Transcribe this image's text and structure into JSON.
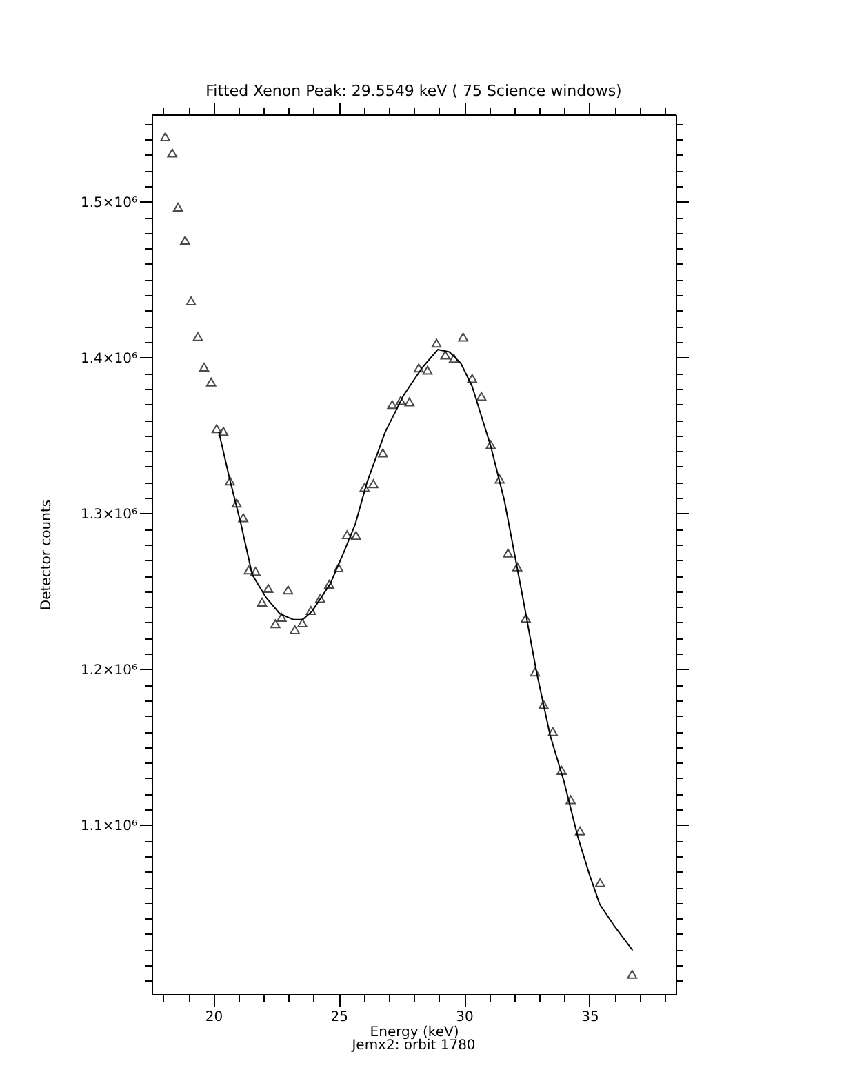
{
  "chart_data": {
    "type": "scatter",
    "title": "Fitted Xenon Peak:       29.5549 keV (      75 Science windows)",
    "xlabel": "Energy (keV)",
    "ylabel": "Detector counts",
    "annotations": [
      "Jemx2: orbit 1780"
    ],
    "xlim": [
      17.54,
      38.44
    ],
    "ylim": [
      991500,
      1556000
    ],
    "xticks": [
      {
        "value": 18,
        "label": null
      },
      {
        "value": 19,
        "label": null
      },
      20,
      {
        "value": 21,
        "label": null
      },
      {
        "value": 22,
        "label": null
      },
      {
        "value": 23,
        "label": null
      },
      {
        "value": 24,
        "label": null
      },
      25,
      {
        "value": 26,
        "label": null
      },
      {
        "value": 27,
        "label": null
      },
      {
        "value": 28,
        "label": null
      },
      {
        "value": 29,
        "label": null
      },
      30,
      {
        "value": 31,
        "label": null
      },
      {
        "value": 32,
        "label": null
      },
      {
        "value": 33,
        "label": null
      },
      {
        "value": 34,
        "label": null
      },
      35,
      {
        "value": 36,
        "label": null
      },
      {
        "value": 37,
        "label": null
      },
      {
        "value": 38,
        "label": null
      }
    ],
    "yticks": [
      {
        "value": 1000000,
        "label": null
      },
      {
        "value": 1010000,
        "label": null
      },
      {
        "value": 1020000,
        "label": null
      },
      {
        "value": 1030000,
        "label": null
      },
      {
        "value": 1040000,
        "label": null
      },
      {
        "value": 1050000,
        "label": null
      },
      {
        "value": 1060000,
        "label": null
      },
      {
        "value": 1070000,
        "label": null
      },
      {
        "value": 1080000,
        "label": null
      },
      {
        "value": 1090000,
        "label": null
      },
      {
        "value": 1100000,
        "label": "1.1×10⁶"
      },
      {
        "value": 1110000,
        "label": null
      },
      {
        "value": 1120000,
        "label": null
      },
      {
        "value": 1130000,
        "label": null
      },
      {
        "value": 1140000,
        "label": null
      },
      {
        "value": 1150000,
        "label": null
      },
      {
        "value": 1160000,
        "label": null
      },
      {
        "value": 1170000,
        "label": null
      },
      {
        "value": 1180000,
        "label": null
      },
      {
        "value": 1190000,
        "label": null
      },
      {
        "value": 1200000,
        "label": "1.2×10⁶"
      },
      {
        "value": 1210000,
        "label": null
      },
      {
        "value": 1220000,
        "label": null
      },
      {
        "value": 1230000,
        "label": null
      },
      {
        "value": 1240000,
        "label": null
      },
      {
        "value": 1250000,
        "label": null
      },
      {
        "value": 1260000,
        "label": null
      },
      {
        "value": 1270000,
        "label": null
      },
      {
        "value": 1280000,
        "label": null
      },
      {
        "value": 1290000,
        "label": null
      },
      {
        "value": 1300000,
        "label": "1.3×10⁶"
      },
      {
        "value": 1310000,
        "label": null
      },
      {
        "value": 1320000,
        "label": null
      },
      {
        "value": 1330000,
        "label": null
      },
      {
        "value": 1340000,
        "label": null
      },
      {
        "value": 1350000,
        "label": null
      },
      {
        "value": 1360000,
        "label": null
      },
      {
        "value": 1370000,
        "label": null
      },
      {
        "value": 1380000,
        "label": null
      },
      {
        "value": 1390000,
        "label": null
      },
      {
        "value": 1400000,
        "label": "1.4×10⁶"
      },
      {
        "value": 1410000,
        "label": null
      },
      {
        "value": 1420000,
        "label": null
      },
      {
        "value": 1430000,
        "label": null
      },
      {
        "value": 1440000,
        "label": null
      },
      {
        "value": 1450000,
        "label": null
      },
      {
        "value": 1460000,
        "label": null
      },
      {
        "value": 1470000,
        "label": null
      },
      {
        "value": 1480000,
        "label": null
      },
      {
        "value": 1490000,
        "label": null
      },
      {
        "value": 1500000,
        "label": "1.5×10⁶"
      },
      {
        "value": 1510000,
        "label": null
      },
      {
        "value": 1520000,
        "label": null
      },
      {
        "value": 1530000,
        "label": null
      },
      {
        "value": 1540000,
        "label": null
      },
      {
        "value": 1550000,
        "label": null
      }
    ],
    "grid": false,
    "series": [
      {
        "marker": "triangle",
        "color": "#000000",
        "x": [
          18.08,
          18.36,
          18.59,
          18.87,
          19.11,
          19.38,
          19.63,
          19.91,
          20.13,
          20.4,
          20.66,
          20.93,
          21.19,
          21.41,
          21.68,
          21.94,
          22.19,
          22.47,
          22.72,
          22.98,
          23.25,
          23.55,
          23.89,
          24.26,
          24.62,
          24.99,
          25.33,
          25.69,
          26.03,
          26.38,
          26.76,
          27.13,
          27.47,
          27.82,
          28.19,
          28.54,
          28.9,
          29.25,
          29.59,
          29.96,
          30.32,
          30.69,
          31.06,
          31.42,
          31.75,
          32.12,
          32.46,
          32.83,
          33.17,
          33.54,
          33.89,
          34.25,
          34.62,
          35.42,
          36.7
        ],
        "values": [
          1541600,
          1531200,
          1496500,
          1475200,
          1436300,
          1413400,
          1393900,
          1384200,
          1354400,
          1352600,
          1320800,
          1306600,
          1297200,
          1263700,
          1262800,
          1243000,
          1251800,
          1229200,
          1233300,
          1250900,
          1225300,
          1229700,
          1237700,
          1245400,
          1254500,
          1265100,
          1286300,
          1285800,
          1316700,
          1319000,
          1338800,
          1369800,
          1372400,
          1371500,
          1393300,
          1391900,
          1409200,
          1401600,
          1399500,
          1413100,
          1386600,
          1375100,
          1344100,
          1322000,
          1274500,
          1265700,
          1232700,
          1198200,
          1177300,
          1159900,
          1135100,
          1116300,
          1096200,
          1063000,
          1004200
        ]
      },
      {
        "type": "line",
        "marker": "none",
        "line_style": "solid",
        "color": "#000000",
        "x": [
          20.22,
          20.64,
          21.1,
          21.55,
          22.1,
          22.65,
          23.2,
          23.56,
          23.93,
          24.66,
          25.21,
          25.66,
          26.12,
          26.85,
          27.58,
          28.32,
          28.95,
          29.41,
          29.87,
          30.32,
          31.06,
          31.61,
          32.34,
          32.88,
          33.43,
          33.98,
          34.53,
          34.98,
          35.41,
          35.99,
          36.72
        ],
        "values": [
          1352100,
          1322600,
          1293100,
          1260700,
          1246000,
          1235600,
          1231800,
          1231800,
          1237100,
          1254800,
          1275400,
          1293100,
          1319600,
          1352100,
          1375600,
          1393300,
          1405100,
          1403600,
          1396300,
          1381500,
          1343200,
          1307900,
          1246000,
          1198800,
          1157600,
          1128100,
          1092700,
          1069100,
          1049100,
          1035200,
          1019600
        ]
      }
    ]
  }
}
